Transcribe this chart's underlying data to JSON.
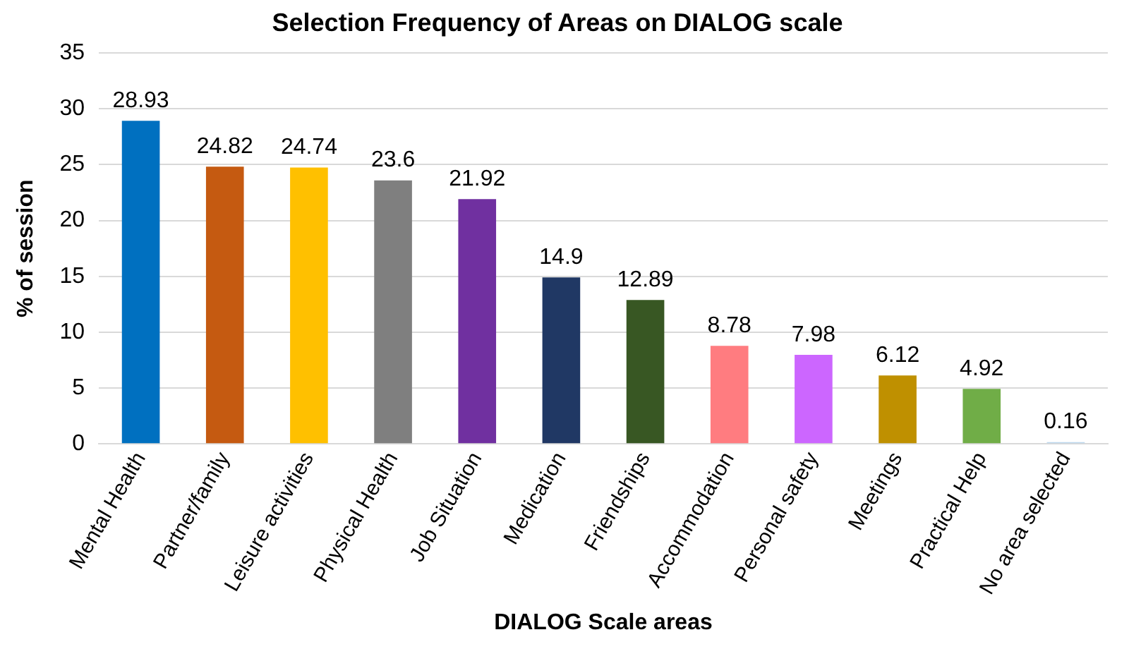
{
  "chart_data": {
    "type": "bar",
    "title": "Selection Frequency of Areas on DIALOG scale",
    "xlabel": "DIALOG Scale areas",
    "ylabel": "% of session",
    "categories": [
      "Mental Health",
      "Partner/family",
      "Leisure activities",
      "Physical Health",
      "Job Situation",
      "Medication",
      "Friendships",
      "Accommodation",
      "Personal safety",
      "Meetings",
      "Practical Help",
      "No area selected"
    ],
    "values": [
      28.93,
      24.82,
      24.74,
      23.6,
      21.92,
      14.9,
      12.89,
      8.78,
      7.98,
      6.12,
      4.92,
      0.16
    ],
    "colors": [
      "#0070c0",
      "#c55a11",
      "#ffc000",
      "#7f7f7f",
      "#7030a0",
      "#203864",
      "#385723",
      "#ff7c80",
      "#cc66ff",
      "#bf9000",
      "#70ad47",
      "#bdd7ee"
    ],
    "ylim": [
      0,
      35
    ],
    "yticks": [
      0,
      5,
      10,
      15,
      20,
      25,
      30,
      35
    ],
    "grid": "y",
    "legend": false,
    "data_labels": true
  }
}
